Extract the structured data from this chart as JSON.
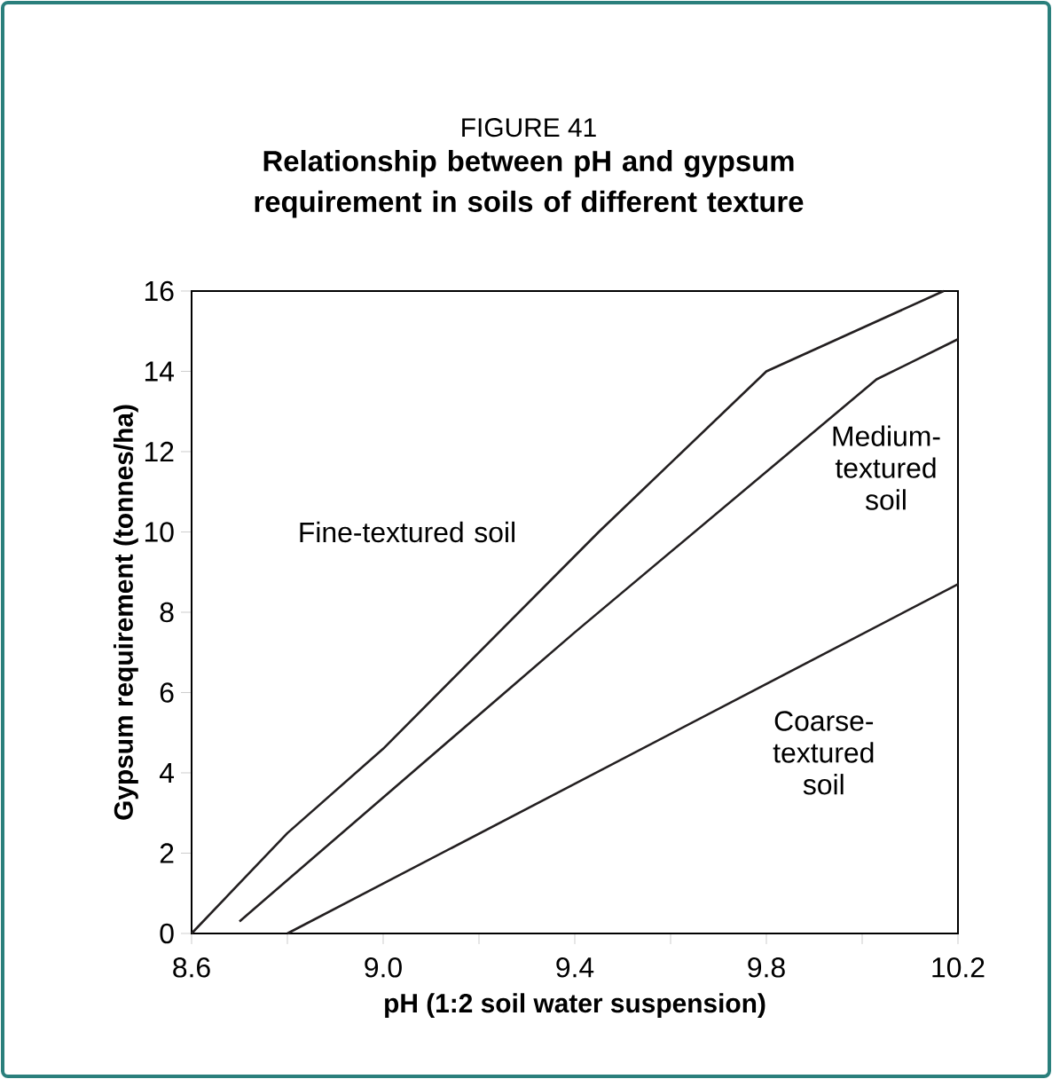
{
  "chart_data": {
    "type": "line",
    "title": "FIGURE 41",
    "subtitle": "Relationship between pH and gypsum requirement in soils of different texture",
    "xlabel": "pH (1:2 soil water suspension)",
    "ylabel": "Gypsum requirement (tonnes/ha)",
    "series": [
      {
        "name": "Fine-textured soil",
        "color": "#231f20",
        "x": [
          8.6,
          8.8,
          9.0,
          9.45,
          9.8,
          10.17
        ],
        "values": [
          0,
          2.5,
          4.6,
          10.0,
          14,
          16
        ]
      },
      {
        "name": "Medium-textured soil",
        "color": "#231f20",
        "x": [
          8.7,
          9.4,
          10.03,
          10.2
        ],
        "values": [
          0.3,
          7.5,
          13.8,
          14.8
        ]
      },
      {
        "name": "Coarse-textured soil",
        "color": "#231f20",
        "x": [
          8.8,
          10.2
        ],
        "values": [
          0,
          8.7
        ]
      }
    ],
    "xlim": [
      8.6,
      10.2
    ],
    "ylim": [
      0,
      16
    ],
    "xticks": [
      {
        "value": 8.6,
        "label": "8.6"
      },
      {
        "value": 8.8,
        "label": null
      },
      {
        "value": 9.0,
        "label": "9.0"
      },
      {
        "value": 9.2,
        "label": null
      },
      {
        "value": 9.4,
        "label": "9.4"
      },
      {
        "value": 9.6,
        "label": null
      },
      {
        "value": 9.8,
        "label": "9.8"
      },
      {
        "value": 10.0,
        "label": null
      },
      {
        "value": 10.2,
        "label": "10.2"
      }
    ],
    "yticks": [
      0,
      2,
      4,
      6,
      8,
      10,
      12,
      14,
      16
    ],
    "grid": false,
    "marker": "none",
    "line_style": "solid"
  }
}
